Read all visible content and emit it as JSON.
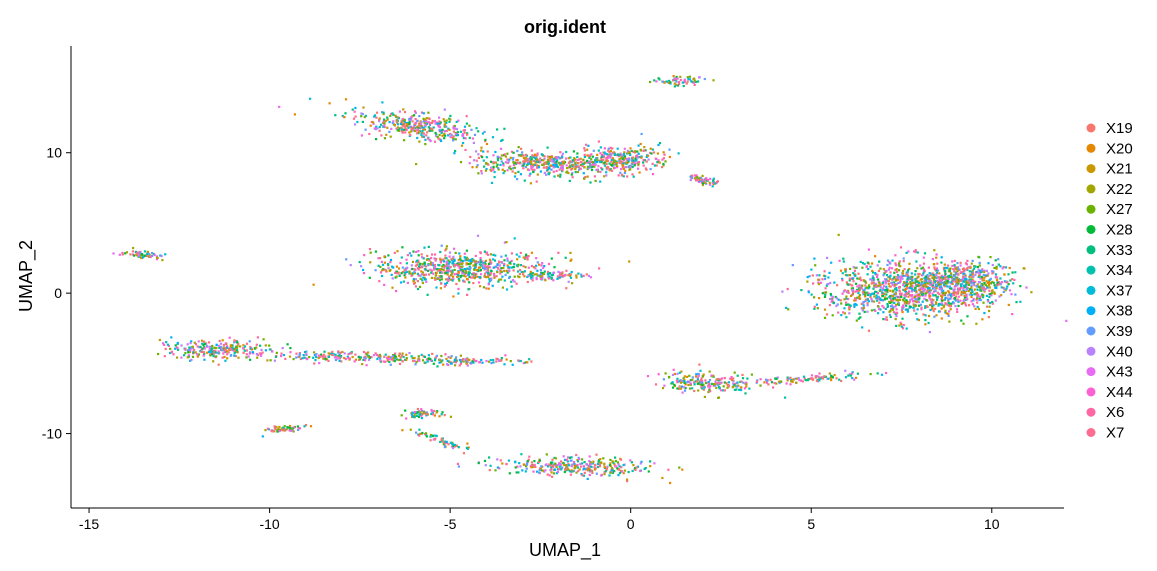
{
  "chart_data": {
    "type": "scatter",
    "title": "orig.ident",
    "xlabel": "UMAP_1",
    "ylabel": "UMAP_2",
    "xlim": [
      -15.5,
      12
    ],
    "ylim": [
      -15.3,
      17.6
    ],
    "xticks": [
      -15,
      -10,
      -5,
      0,
      5,
      10
    ],
    "yticks": [
      -10,
      0,
      10
    ],
    "grid": false,
    "legend_position": "right",
    "series": [
      {
        "name": "X19",
        "color": "#F8766D"
      },
      {
        "name": "X20",
        "color": "#E58700"
      },
      {
        "name": "X21",
        "color": "#C99800"
      },
      {
        "name": "X22",
        "color": "#A3A500"
      },
      {
        "name": "X27",
        "color": "#6BB100"
      },
      {
        "name": "X28",
        "color": "#00BA38"
      },
      {
        "name": "X33",
        "color": "#00BF7D"
      },
      {
        "name": "X34",
        "color": "#00C0AF"
      },
      {
        "name": "X37",
        "color": "#00BCD8"
      },
      {
        "name": "X38",
        "color": "#00B0F6"
      },
      {
        "name": "X39",
        "color": "#619CFF"
      },
      {
        "name": "X40",
        "color": "#B983FF"
      },
      {
        "name": "X43",
        "color": "#E76BF3"
      },
      {
        "name": "X44",
        "color": "#FD61D1"
      },
      {
        "name": "X6",
        "color": "#FF67A4"
      },
      {
        "name": "X7",
        "color": "#FF6C91"
      }
    ],
    "clusters": [
      {
        "name": "top-small",
        "center": [
          1.3,
          15.2
        ],
        "spread": [
          0.7,
          0.3
        ],
        "angle": 0
      },
      {
        "name": "upper-arc-a",
        "center": [
          -6.0,
          12.0
        ],
        "spread": [
          1.8,
          0.8
        ],
        "angle": -25
      },
      {
        "name": "upper-arc-b",
        "center": [
          -2.5,
          9.3
        ],
        "spread": [
          2.0,
          0.8
        ],
        "angle": -5
      },
      {
        "name": "upper-arc-c",
        "center": [
          -0.3,
          9.6
        ],
        "spread": [
          1.2,
          0.9
        ],
        "angle": 10
      },
      {
        "name": "upper-tail",
        "center": [
          2.0,
          8.1
        ],
        "spread": [
          0.45,
          0.2
        ],
        "angle": -30
      },
      {
        "name": "mid-left-island",
        "center": [
          -13.6,
          2.8
        ],
        "spread": [
          0.45,
          0.25
        ],
        "angle": -20
      },
      {
        "name": "central-blob",
        "center": [
          -4.7,
          1.8
        ],
        "spread": [
          2.2,
          1.2
        ],
        "angle": 0
      },
      {
        "name": "central-tail",
        "center": [
          -2.2,
          1.3
        ],
        "spread": [
          0.9,
          0.3
        ],
        "angle": 0
      },
      {
        "name": "right-big-a",
        "center": [
          7.5,
          0.3
        ],
        "spread": [
          2.1,
          1.9
        ],
        "angle": -15
      },
      {
        "name": "right-big-b",
        "center": [
          9.2,
          0.8
        ],
        "spread": [
          1.2,
          1.4
        ],
        "angle": 0
      },
      {
        "name": "left-streak-a",
        "center": [
          -11.5,
          -3.9
        ],
        "spread": [
          1.5,
          0.6
        ],
        "angle": 0
      },
      {
        "name": "left-streak-b",
        "center": [
          -7.5,
          -4.5
        ],
        "spread": [
          2.6,
          0.35
        ],
        "angle": -3
      },
      {
        "name": "left-streak-c",
        "center": [
          -4.5,
          -4.8
        ],
        "spread": [
          1.3,
          0.25
        ],
        "angle": 0
      },
      {
        "name": "mid-right-blob",
        "center": [
          2.1,
          -6.3
        ],
        "spread": [
          1.3,
          0.6
        ],
        "angle": -8
      },
      {
        "name": "mid-right-tail",
        "center": [
          5.0,
          -6.0
        ],
        "spread": [
          1.6,
          0.25
        ],
        "angle": 10
      },
      {
        "name": "lower-small-a",
        "center": [
          -9.6,
          -9.6
        ],
        "spread": [
          0.6,
          0.2
        ],
        "angle": 18
      },
      {
        "name": "lower-small-b",
        "center": [
          -5.8,
          -8.5
        ],
        "spread": [
          0.5,
          0.3
        ],
        "angle": 0
      },
      {
        "name": "lower-stream",
        "center": [
          -5.3,
          -10.4
        ],
        "spread": [
          1.0,
          0.2
        ],
        "angle": -40
      },
      {
        "name": "bottom-blob",
        "center": [
          -1.7,
          -12.3
        ],
        "spread": [
          2.0,
          0.6
        ],
        "angle": -3
      }
    ]
  }
}
